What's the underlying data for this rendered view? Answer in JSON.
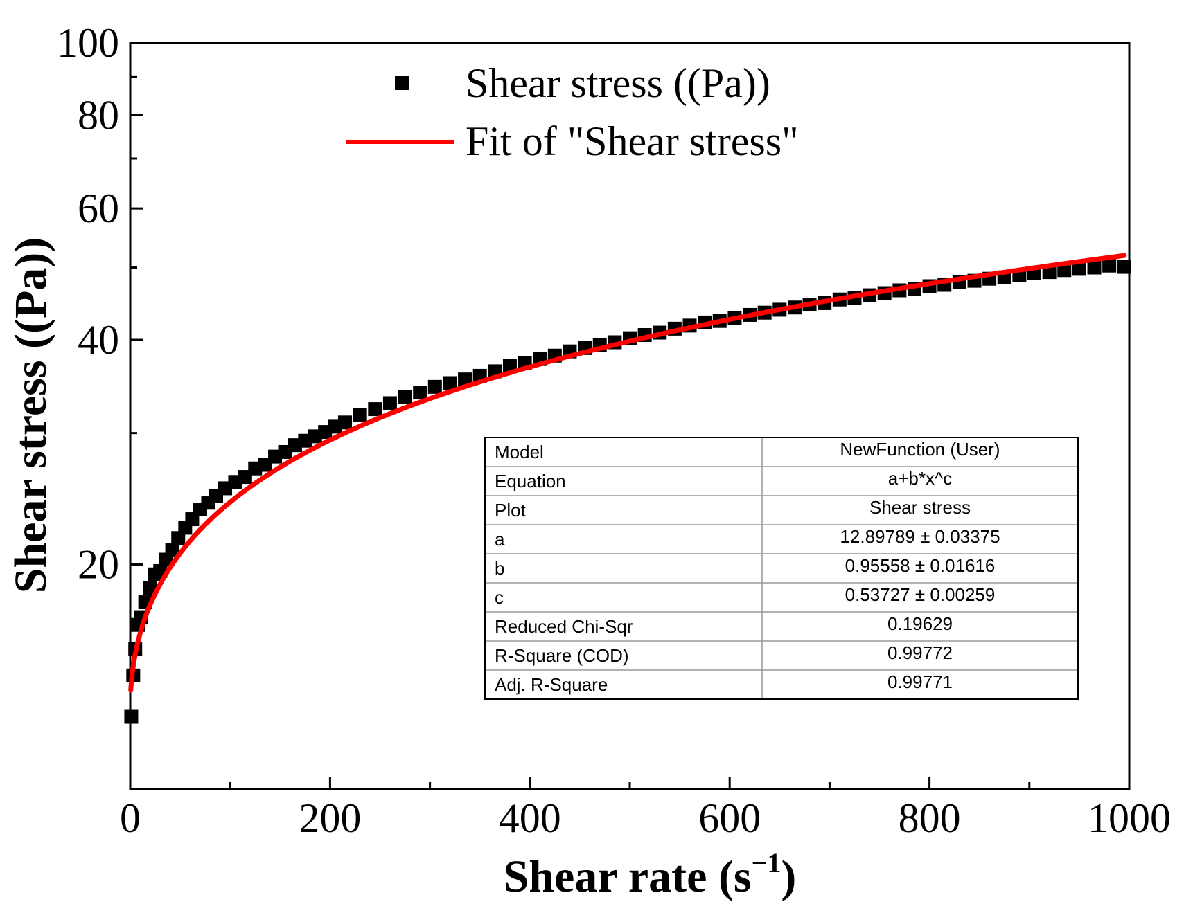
{
  "chart_data": {
    "type": "scatter",
    "title": "",
    "xlabel_main": "Shear rate (s",
    "xlabel_sup": "−1",
    "xlabel_close": ")",
    "ylabel": "Shear stress ((Pa))",
    "xlim": [
      0,
      1000
    ],
    "ylim": [
      10,
      100
    ],
    "yscale": "log",
    "x_ticks": [
      0,
      200,
      400,
      600,
      800,
      1000
    ],
    "x_tick_labels": [
      "0",
      "200",
      "400",
      "600",
      "800",
      "1000"
    ],
    "y_ticks": [
      20,
      40,
      60,
      80,
      100
    ],
    "y_tick_labels": [
      "20",
      "40",
      "60",
      "80",
      "100"
    ],
    "legend": {
      "position": "top",
      "entries": [
        {
          "label": "Shear stress ((Pa))",
          "marker": "square",
          "color": "#000000"
        },
        {
          "label": "Fit of \"Shear stress\"",
          "marker": "line",
          "color": "#ff0000"
        }
      ]
    },
    "series": [
      {
        "name": "Shear stress ((Pa))",
        "kind": "scatter",
        "color": "#000000",
        "x": [
          1,
          3,
          5,
          8,
          11,
          15,
          20,
          25,
          30,
          36,
          42,
          48,
          55,
          62,
          70,
          78,
          86,
          95,
          105,
          115,
          125,
          135,
          145,
          155,
          165,
          175,
          185,
          195,
          205,
          215,
          230,
          245,
          260,
          275,
          290,
          305,
          320,
          335,
          350,
          365,
          380,
          395,
          410,
          425,
          440,
          455,
          470,
          485,
          500,
          515,
          530,
          545,
          560,
          575,
          590,
          605,
          620,
          635,
          650,
          665,
          680,
          695,
          710,
          725,
          740,
          755,
          770,
          785,
          800,
          815,
          830,
          845,
          860,
          875,
          890,
          905,
          920,
          935,
          950,
          965,
          980,
          995
        ],
        "y": [
          12.5,
          14.2,
          15.4,
          16.6,
          17.0,
          17.8,
          18.6,
          19.4,
          19.6,
          20.3,
          20.9,
          21.7,
          22.4,
          23.0,
          23.7,
          24.2,
          24.7,
          25.3,
          25.8,
          26.2,
          26.9,
          27.2,
          27.9,
          28.3,
          28.9,
          29.3,
          29.7,
          30.1,
          30.6,
          31.0,
          31.7,
          32.3,
          32.9,
          33.5,
          34.0,
          34.6,
          35.0,
          35.4,
          35.8,
          36.3,
          36.9,
          37.2,
          37.7,
          38.1,
          38.6,
          39.0,
          39.4,
          39.7,
          40.2,
          40.6,
          40.9,
          41.4,
          41.8,
          42.2,
          42.4,
          42.8,
          43.2,
          43.5,
          43.9,
          44.2,
          44.6,
          44.8,
          45.3,
          45.5,
          45.9,
          46.2,
          46.6,
          46.8,
          47.2,
          47.4,
          47.8,
          48.0,
          48.3,
          48.5,
          48.8,
          49.1,
          49.3,
          49.6,
          49.8,
          50.0,
          50.3,
          50.1
        ]
      },
      {
        "name": "Fit of \"Shear stress\"",
        "kind": "line",
        "color": "#ff0000",
        "model": "a+b*x^c",
        "a": 12.89789,
        "b": 0.95558,
        "c": 0.53727
      }
    ]
  },
  "fit_table": {
    "rows": [
      {
        "label": "Model",
        "value": "NewFunction (User)"
      },
      {
        "label": "Equation",
        "value": "a+b*x^c"
      },
      {
        "label": "Plot",
        "value": "Shear stress"
      },
      {
        "label": "a",
        "value": "12.89789 ± 0.03375"
      },
      {
        "label": "b",
        "value": "0.95558 ± 0.01616"
      },
      {
        "label": "c",
        "value": "0.53727 ± 0.00259"
      },
      {
        "label": "Reduced Chi-Sqr",
        "value": "0.19629"
      },
      {
        "label": "R-Square (COD)",
        "value": "0.99772"
      },
      {
        "label": "Adj. R-Square",
        "value": "0.99771"
      }
    ]
  }
}
